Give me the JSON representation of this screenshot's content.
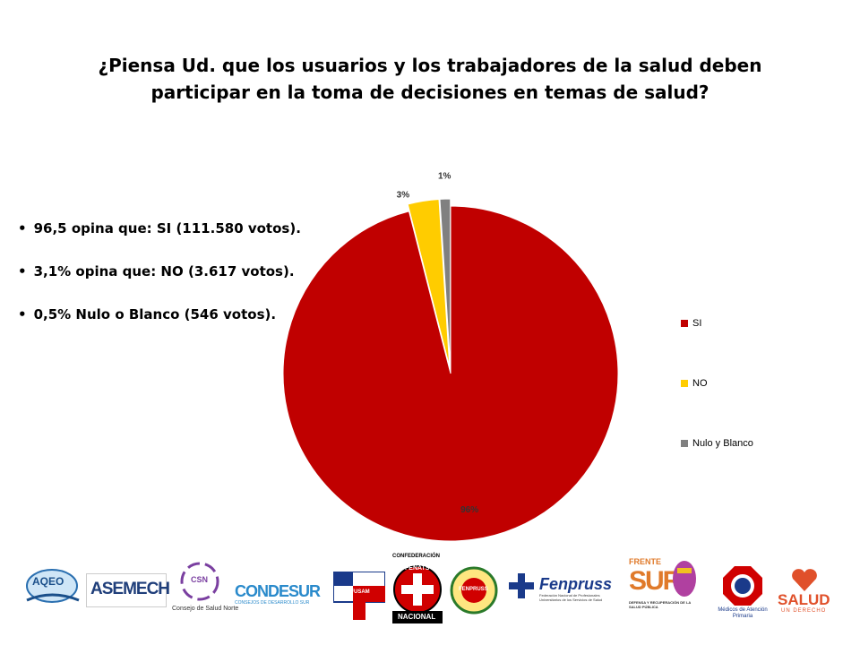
{
  "slide": {
    "title_line1": "¿Piensa Ud. que los usuarios y los trabajadores de la salud deben",
    "title_line2": "participar en la toma de decisiones en temas de salud?",
    "bullets": [
      "96,5 opina que: SI (111.580 votos).",
      "3,1% opina que: NO (3.617 votos).",
      "0,5% Nulo o Blanco (546 votos)."
    ]
  },
  "chart_data": {
    "type": "pie",
    "title": "",
    "slices": [
      {
        "name": "SI",
        "value": 96,
        "label": "96%",
        "color": "#c00000"
      },
      {
        "name": "NO",
        "value": 3,
        "label": "3%",
        "color": "#ffcc00"
      },
      {
        "name": "Nulo y Blanco",
        "value": 1,
        "label": "1%",
        "color": "#808080"
      }
    ],
    "legend_position": "right"
  },
  "logos": {
    "aqeo": "AQEO",
    "asemech": "ASEMECH",
    "csn": "CSN",
    "csn_caption": "Consejo de Salud Norte",
    "condesur": "CONDESUR",
    "condesur_caption": "CONSEJOS DE DESARROLLO SUR",
    "confusam": "CONFUSAM",
    "fenats_top": "CONFEDERACIÓN",
    "fenats": "FENATS",
    "fenats_bottom": "NACIONAL",
    "fenpruss_circle": "FENPRUSS",
    "fenpruss": "Fenpruss",
    "fenpruss_caption": "Federación Nacional de Profesionales Universitarios de los Servicios de Salud",
    "frente_top": "FRENTE",
    "frente": "SUR",
    "frente_caption": "DEFENSA Y RECUPERACIÓN DE LA SALUD PÚBLICA",
    "medicos_caption": "Médicos de Atención Primaria",
    "salud": "SALUD",
    "salud_caption": "UN DERECHO"
  }
}
